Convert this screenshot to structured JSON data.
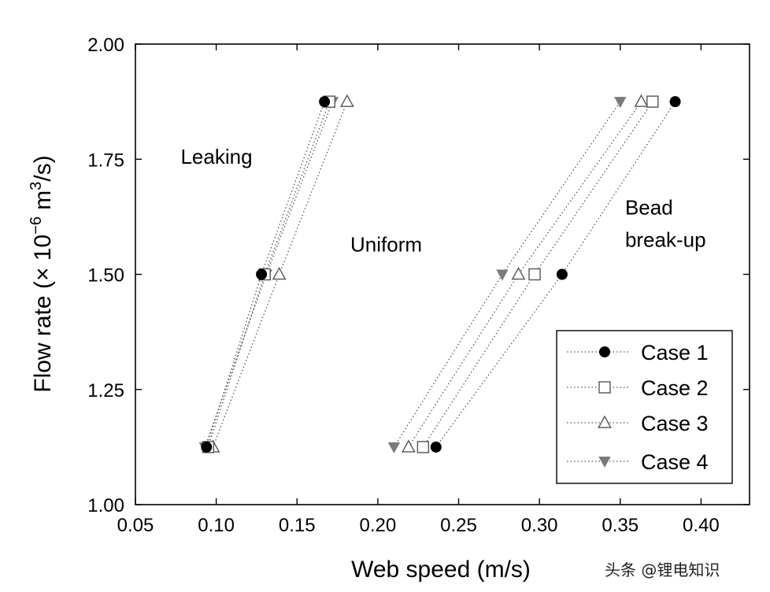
{
  "chart_data": {
    "type": "scatter",
    "xlabel": "Web speed (m/s)",
    "ylabel_parts": [
      "Flow rate (× 10",
      "−6",
      " m",
      "3",
      "/s)"
    ],
    "xlim": [
      0.05,
      0.43
    ],
    "ylim": [
      1.0,
      2.0
    ],
    "xticks": [
      "0.05",
      "0.10",
      "0.15",
      "0.20",
      "0.25",
      "0.30",
      "0.35",
      "0.40"
    ],
    "xtick_values": [
      0.05,
      0.1,
      0.15,
      0.2,
      0.25,
      0.3,
      0.35,
      0.4
    ],
    "yticks": [
      "1.00",
      "1.25",
      "1.50",
      "1.75",
      "2.00"
    ],
    "ytick_values": [
      1.0,
      1.25,
      1.5,
      1.75,
      2.0
    ],
    "grid": false,
    "legend_position": "bottom-right",
    "annotations": [
      {
        "text": "Leaking",
        "x": 0.078,
        "y": 1.74
      },
      {
        "text": "Uniform",
        "x": 0.183,
        "y": 1.55
      },
      {
        "text": "Bead",
        "x": 0.353,
        "y": 1.63
      },
      {
        "text": "break-up",
        "x": 0.353,
        "y": 1.56
      }
    ],
    "series": [
      {
        "name": "Case 1",
        "marker": "circle-filled",
        "lower": {
          "x": [
            0.094,
            0.128,
            0.167
          ],
          "y": [
            1.125,
            1.5,
            1.875
          ]
        },
        "upper": {
          "x": [
            0.236,
            0.314,
            0.384
          ],
          "y": [
            1.125,
            1.5,
            1.875
          ]
        }
      },
      {
        "name": "Case 2",
        "marker": "square-open",
        "lower": {
          "x": [
            0.095,
            0.13,
            0.17
          ],
          "y": [
            1.125,
            1.5,
            1.875
          ]
        },
        "upper": {
          "x": [
            0.228,
            0.297,
            0.37
          ],
          "y": [
            1.125,
            1.5,
            1.875
          ]
        }
      },
      {
        "name": "Case 3",
        "marker": "triangle-up-open",
        "lower": {
          "x": [
            0.098,
            0.139,
            0.181
          ],
          "y": [
            1.125,
            1.5,
            1.875
          ]
        },
        "upper": {
          "x": [
            0.219,
            0.287,
            0.363
          ],
          "y": [
            1.125,
            1.5,
            1.875
          ]
        }
      },
      {
        "name": "Case 4",
        "marker": "triangle-down-filled",
        "lower": {
          "x": [
            0.093,
            0.131,
            0.172
          ],
          "y": [
            1.125,
            1.5,
            1.875
          ]
        },
        "upper": {
          "x": [
            0.21,
            0.277,
            0.35
          ],
          "y": [
            1.125,
            1.5,
            1.875
          ]
        }
      }
    ]
  },
  "watermark": "头条 @锂电知识",
  "colors": {
    "axis": "#000000",
    "filled_marker": "#000000",
    "gray_marker": "#7a7a7a",
    "open_marker_stroke": "#555555",
    "dotted_line": "#555555"
  }
}
